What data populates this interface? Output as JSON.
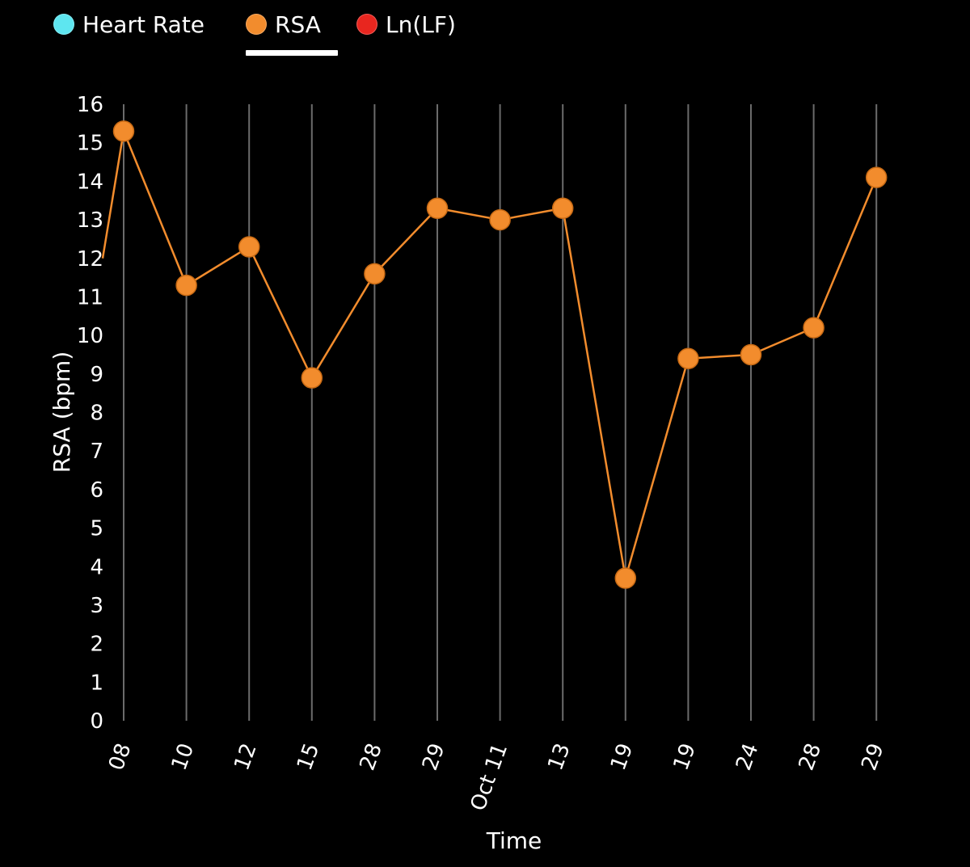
{
  "legend": {
    "items": [
      {
        "label": "Heart Rate",
        "color": "#5ee6f0",
        "active": false
      },
      {
        "label": "RSA",
        "color": "#f28c2d",
        "active": true
      },
      {
        "label": "Ln(LF)",
        "color": "#e8261f",
        "active": false
      }
    ]
  },
  "chart_data": {
    "type": "line",
    "title": "",
    "xlabel": "Time",
    "ylabel": "RSA (bpm)",
    "ylim": [
      0,
      16
    ],
    "yticks": [
      "0",
      "1",
      "2",
      "3",
      "4",
      "5",
      "6",
      "7",
      "8",
      "9",
      "10",
      "11",
      "12",
      "13",
      "14",
      "15",
      "16"
    ],
    "categories": [
      "08",
      "10",
      "12",
      "15",
      "28",
      "29",
      "Oct 11",
      "13",
      "19",
      "19",
      "24",
      "28",
      "29"
    ],
    "series": [
      {
        "name": "RSA",
        "color": "#f28c2d",
        "values": [
          15.3,
          11.3,
          12.3,
          8.9,
          11.6,
          13.3,
          13.0,
          13.3,
          3.7,
          9.4,
          9.5,
          10.2,
          14.1
        ],
        "lead_in_value": 12.0
      }
    ]
  }
}
